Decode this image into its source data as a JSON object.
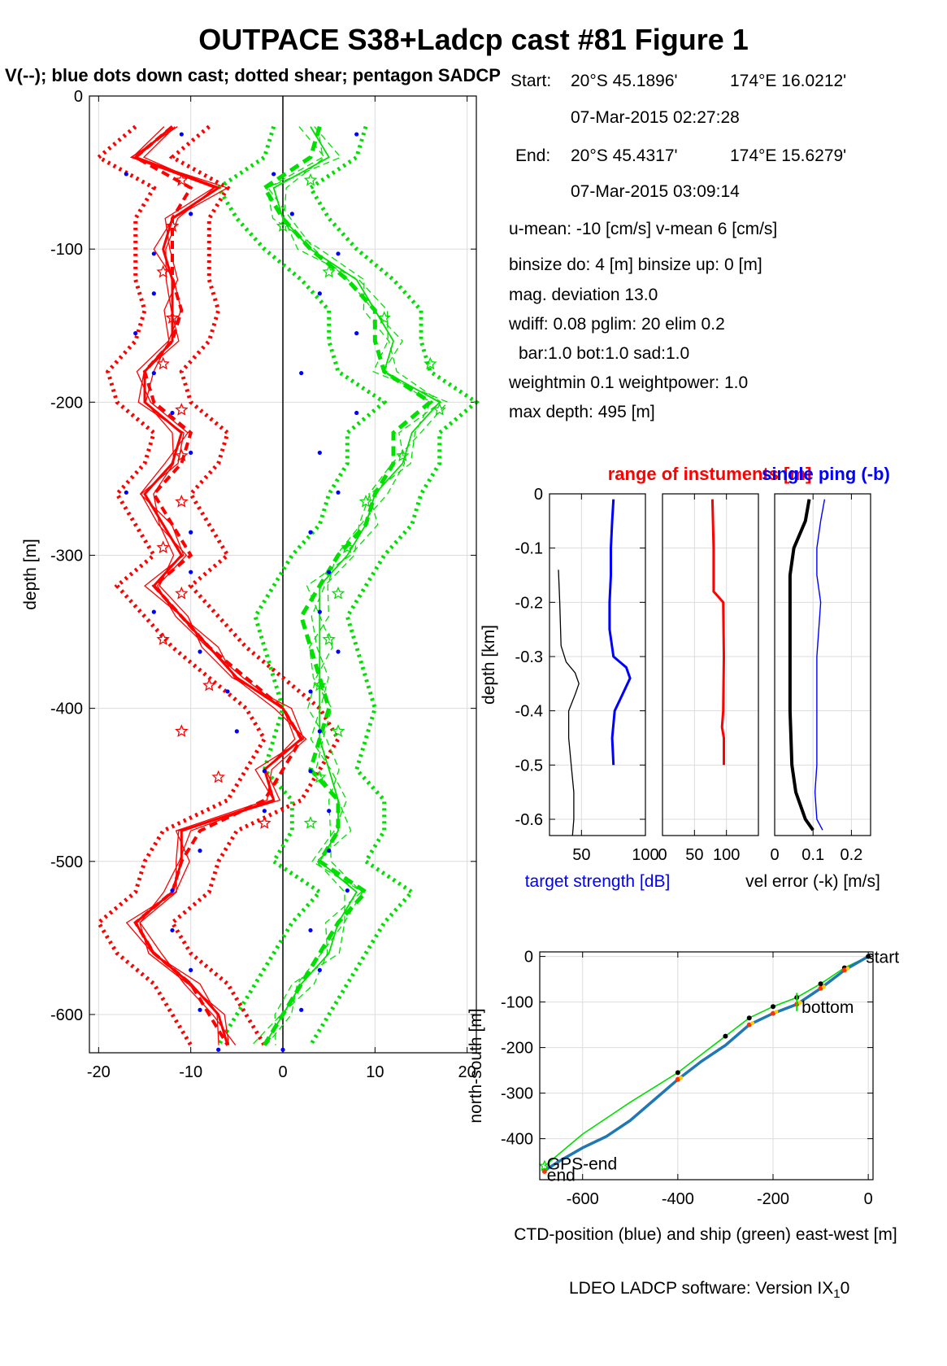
{
  "title": "OUTPACE S38+Ladcp cast #81  Figure 1",
  "subtitle": "V(--); blue dots down cast; dotted shear; pentagon SADCP",
  "info": {
    "start_label": "Start:",
    "start_lat": "20°S 45.1896'",
    "start_lon": "174°E 16.0212'",
    "start_time": "07-Mar-2015 02:27:28",
    "end_label": "End:",
    "end_lat": "20°S 45.4317'",
    "end_lon": "174°E 15.6279'",
    "end_time": "07-Mar-2015 03:09:14",
    "umean": "u-mean: -10 [cm/s]    v-mean   6 [cm/s]",
    "binsize": "binsize do: 4 [m]  binsize up:  0 [m]",
    "magdev": "mag. deviation 13.0",
    "wdiff": "wdiff: 0.08  pglim: 20  elim 0.2",
    "bar": "bar:1.0 bot:1.0 sad:1.0",
    "weight": "weightmin 0.1  weightpower: 1.0",
    "maxdepth": "max depth: 495 [m]"
  },
  "footer": {
    "text": "LDEO LADCP software: Version IX",
    "sub": "1",
    "tail": "0"
  },
  "colors": {
    "u": "#ff0000",
    "v": "#00e000",
    "downcast": "#0000ff",
    "range": "#ff0000",
    "single_ping": "#0000ff",
    "ship": "#00dd00",
    "ctd": "#1f77b4"
  },
  "chart_data": [
    {
      "type": "line",
      "name": "velocity-profile",
      "ylabel": "depth [m]",
      "xlabel": "",
      "xlim": [
        -21,
        21
      ],
      "ylim": [
        -625,
        0
      ],
      "xticks": [
        -20,
        -10,
        0,
        10,
        20
      ],
      "yticks": [
        0,
        -100,
        -200,
        -300,
        -400,
        -500,
        -600
      ],
      "grid": true,
      "depth": [
        -20,
        -40,
        -60,
        -80,
        -100,
        -120,
        -140,
        -160,
        -180,
        -200,
        -220,
        -240,
        -260,
        -280,
        -300,
        -320,
        -340,
        -360,
        -380,
        -400,
        -420,
        -440,
        -460,
        -480,
        -500,
        -520,
        -540,
        -560,
        -580,
        -600,
        -620
      ],
      "u_mean": [
        -12,
        -16,
        -7,
        -12,
        -13,
        -12,
        -12,
        -12,
        -15,
        -15,
        -11,
        -12,
        -15,
        -13,
        -11,
        -14,
        -11,
        -8,
        -5,
        0,
        2,
        -2,
        -1,
        -11,
        -11,
        -12,
        -16,
        -14,
        -10,
        -7,
        -6
      ],
      "u_shear": [
        -12,
        -16,
        -10,
        -12,
        -12,
        -12,
        -11,
        -12,
        -15,
        -14,
        -10,
        -11,
        -14,
        -12,
        -10,
        -14,
        -11,
        -8,
        -4,
        0,
        2,
        0,
        -2,
        -9,
        -11,
        -12,
        -16,
        -14,
        -10,
        -8,
        -6
      ],
      "v_mean": [
        3,
        5,
        -1,
        0,
        3,
        8,
        10,
        12,
        11,
        17,
        14,
        13,
        10,
        9,
        7,
        4,
        4,
        4,
        4,
        4,
        4,
        5,
        6,
        6,
        4,
        8,
        6,
        5,
        2,
        0,
        -2
      ],
      "v_shear": [
        4,
        3,
        -2,
        0,
        3,
        7,
        10,
        10,
        11,
        16,
        12,
        12,
        10,
        9,
        6,
        4,
        2,
        3,
        4,
        5,
        4,
        3,
        6,
        6,
        4,
        9,
        6,
        4,
        2,
        0,
        -2
      ],
      "downcast_u": [
        -11,
        -17,
        -10,
        -14,
        -14,
        -16,
        -14,
        -12,
        -10,
        -17,
        -10,
        -10,
        -14,
        -9,
        -6,
        -5,
        -2,
        -2,
        -9,
        -12,
        -12,
        -10,
        -9,
        -7
      ],
      "downcast_v": [
        8,
        -1,
        1,
        6,
        4,
        8,
        2,
        8,
        4,
        6,
        3,
        5,
        4,
        6,
        3,
        4,
        3,
        5,
        5,
        7,
        3,
        4,
        2,
        0
      ],
      "sadcp_u": [
        -11,
        -12,
        -13,
        -12,
        -13,
        -11,
        -11,
        -11,
        -13,
        -11,
        -13,
        -8,
        -11,
        -7,
        -2
      ],
      "sadcp_v": [
        3,
        0,
        5,
        11,
        16,
        17,
        13,
        9,
        7,
        6,
        5,
        4,
        6,
        4,
        3
      ]
    },
    {
      "type": "line",
      "name": "target-strength",
      "title": "range of instuments [m]",
      "xlabel": "target strength [dB]",
      "ylabel": "depth [km]",
      "ylim": [
        -0.63,
        0
      ],
      "xlim": [
        25,
        100
      ],
      "xticks": [
        50,
        100
      ],
      "yticks": [
        0,
        -0.1,
        -0.2,
        -0.3,
        -0.4,
        -0.5,
        -0.6
      ],
      "depth_black": [
        -0.14,
        -0.2,
        -0.28,
        -0.31,
        -0.33,
        -0.35,
        -0.37,
        -0.4,
        -0.45,
        -0.5,
        -0.55,
        -0.6,
        -0.63
      ],
      "black": [
        32,
        33,
        34,
        38,
        45,
        48,
        45,
        40,
        40,
        42,
        44,
        44,
        43
      ],
      "depth_blue": [
        -0.01,
        -0.05,
        -0.1,
        -0.15,
        -0.2,
        -0.25,
        -0.3,
        -0.32,
        -0.34,
        -0.37,
        -0.4,
        -0.45,
        -0.5
      ],
      "blue": [
        75,
        74,
        73,
        73,
        72,
        72,
        75,
        85,
        88,
        82,
        76,
        74,
        75
      ]
    },
    {
      "type": "line",
      "name": "range-of-instruments",
      "xlabel": "",
      "ylim": [
        -0.63,
        0
      ],
      "xlim": [
        0,
        150
      ],
      "xticks": [
        0,
        50,
        100
      ],
      "depth": [
        -0.01,
        -0.1,
        -0.18,
        -0.2,
        -0.3,
        -0.4,
        -0.43,
        -0.45,
        -0.5
      ],
      "red": [
        78,
        80,
        80,
        95,
        96,
        95,
        93,
        96,
        96
      ]
    },
    {
      "type": "line",
      "name": "vel-error",
      "title": "single ping (-b)",
      "xlabel": "vel error (-k) [m/s]",
      "ylim": [
        -0.63,
        0
      ],
      "xlim": [
        0,
        0.25
      ],
      "xticks": [
        0,
        0.1,
        0.2
      ],
      "depth": [
        -0.01,
        -0.05,
        -0.1,
        -0.15,
        -0.2,
        -0.3,
        -0.4,
        -0.5,
        -0.55,
        -0.6,
        -0.62
      ],
      "black": [
        0.09,
        0.08,
        0.05,
        0.04,
        0.04,
        0.04,
        0.04,
        0.045,
        0.055,
        0.08,
        0.1
      ],
      "blue": [
        0.13,
        0.12,
        0.11,
        0.11,
        0.12,
        0.11,
        0.11,
        0.11,
        0.105,
        0.11,
        0.125
      ]
    },
    {
      "type": "line",
      "name": "position",
      "xlabel": "CTD-position (blue) and ship (green) east-west [m]",
      "ylabel": "north-south [m]",
      "xlim": [
        -690,
        10
      ],
      "ylim": [
        -490,
        10
      ],
      "xticks": [
        -600,
        -400,
        -200,
        0
      ],
      "yticks": [
        0,
        -100,
        -200,
        -300,
        -400
      ],
      "ctd_x": [
        0,
        -50,
        -100,
        -150,
        -200,
        -250,
        -300,
        -350,
        -400,
        -450,
        -500,
        -550,
        -600,
        -650,
        -680
      ],
      "ctd_y": [
        0,
        -30,
        -70,
        -105,
        -125,
        -150,
        -195,
        -230,
        -270,
        -315,
        -360,
        -395,
        -420,
        -450,
        -470
      ],
      "ship_x": [
        0,
        -50,
        -100,
        -150,
        -200,
        -250,
        -300,
        -350,
        -400,
        -500,
        -600,
        -680
      ],
      "ship_y": [
        0,
        -25,
        -60,
        -90,
        -110,
        -135,
        -175,
        -215,
        -255,
        -320,
        -390,
        -460
      ],
      "labels": [
        "start",
        "bottom",
        "GPS-end",
        "end"
      ]
    }
  ]
}
